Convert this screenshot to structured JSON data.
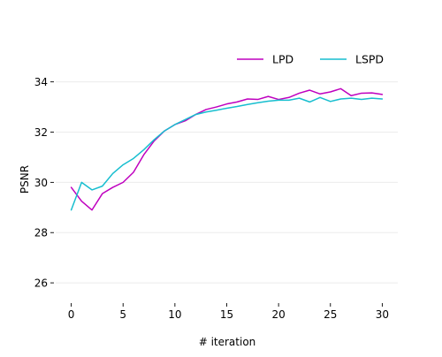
{
  "chart_data": {
    "type": "line",
    "title": "",
    "xlabel": "# iteration",
    "ylabel": "PSNR",
    "xlim": [
      -1.5,
      31.5
    ],
    "ylim": [
      25.3,
      35.5
    ],
    "xticks": [
      0,
      5,
      10,
      15,
      20,
      25,
      30
    ],
    "yticks": [
      26,
      28,
      30,
      32,
      34
    ],
    "grid": "horizontal",
    "legend_position": "top-right",
    "x": [
      0,
      1,
      2,
      3,
      4,
      5,
      6,
      7,
      8,
      9,
      10,
      11,
      12,
      13,
      14,
      15,
      16,
      17,
      18,
      19,
      20,
      21,
      22,
      23,
      24,
      25,
      26,
      27,
      28,
      29,
      30
    ],
    "series": [
      {
        "name": "LPD",
        "color": "#bf00bf",
        "values": [
          29.8,
          29.25,
          28.9,
          29.55,
          29.8,
          30.0,
          30.4,
          31.1,
          31.65,
          32.05,
          32.3,
          32.45,
          32.7,
          32.9,
          33.0,
          33.12,
          33.2,
          33.32,
          33.3,
          33.42,
          33.3,
          33.38,
          33.55,
          33.67,
          33.52,
          33.6,
          33.73,
          33.45,
          33.55,
          33.56,
          33.5
        ]
      },
      {
        "name": "LSPD",
        "color": "#17becf",
        "values": [
          28.9,
          30.0,
          29.7,
          29.85,
          30.35,
          30.7,
          30.95,
          31.3,
          31.7,
          32.05,
          32.3,
          32.5,
          32.7,
          32.8,
          32.87,
          32.95,
          33.02,
          33.1,
          33.17,
          33.23,
          33.27,
          33.27,
          33.35,
          33.2,
          33.38,
          33.22,
          33.32,
          33.35,
          33.3,
          33.35,
          33.32
        ]
      }
    ]
  }
}
